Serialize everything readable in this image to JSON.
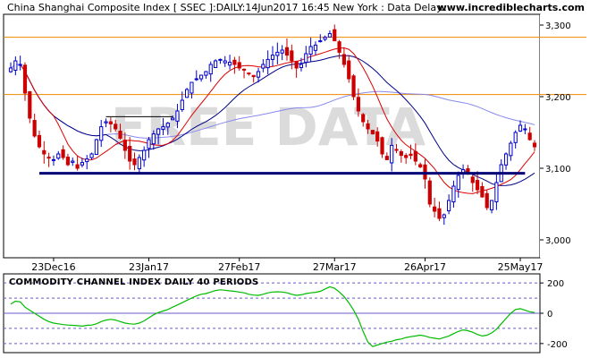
{
  "header": {
    "title": "China Shanghai Composite Index [ SSEC ]:DAILY:14Jun2017 16:45 New York : Data Delay..",
    "site": "www.incrediblecharts.com"
  },
  "watermark": "FREE DATA",
  "colors": {
    "up_candle": "#0000cc",
    "down_candle": "#cc0000",
    "ma_short": "#dd0000",
    "ma_long": "#000088",
    "ma_slow": "#8888ee",
    "resistance_line": "#ee8800",
    "support_line": "#000077",
    "cci_line": "#00bb00",
    "cci_dash": "#6a5acd"
  },
  "chart_data": [
    {
      "type": "candlestick",
      "title": "China Shanghai Composite Index [ SSEC ]:DAILY",
      "xlabel": "",
      "ylabel": "",
      "ylim": [
        2975,
        3315
      ],
      "y_ticks": [
        {
          "value": 3000,
          "label": "3,000"
        },
        {
          "value": 3100,
          "label": "3,100"
        },
        {
          "value": 3200,
          "label": "3,200"
        },
        {
          "value": 3300,
          "label": "3,300"
        }
      ],
      "x_ticks": [
        {
          "index": 9,
          "label": "23Dec16"
        },
        {
          "index": 29,
          "label": "23Jan17"
        },
        {
          "index": 48,
          "label": "27Feb17"
        },
        {
          "index": 68,
          "label": "27Mar17"
        },
        {
          "index": 87,
          "label": "26Apr17"
        },
        {
          "index": 107,
          "label": "25May17"
        }
      ],
      "horizontal_lines": [
        {
          "name": "resistance-upper",
          "value": 3283
        },
        {
          "name": "resistance-lower",
          "value": 3203
        }
      ],
      "support_line": {
        "from_index": 6,
        "to_index": 108,
        "value": 3093
      },
      "box_line": {
        "from_index": 20,
        "to_index": 34,
        "value": 3172
      },
      "closes": [
        3240,
        3250,
        3245,
        3205,
        3170,
        3145,
        3130,
        3120,
        3115,
        3112,
        3120,
        3115,
        3105,
        3110,
        3100,
        3108,
        3113,
        3120,
        3140,
        3158,
        3165,
        3162,
        3155,
        3142,
        3125,
        3110,
        3105,
        3115,
        3125,
        3140,
        3148,
        3155,
        3158,
        3163,
        3170,
        3180,
        3195,
        3210,
        3220,
        3225,
        3230,
        3235,
        3245,
        3250,
        3252,
        3250,
        3248,
        3245,
        3240,
        3238,
        3232,
        3228,
        3235,
        3245,
        3252,
        3258,
        3262,
        3265,
        3258,
        3250,
        3240,
        3245,
        3260,
        3270,
        3272,
        3278,
        3283,
        3288,
        3278,
        3262,
        3245,
        3225,
        3200,
        3180,
        3165,
        3155,
        3148,
        3138,
        3120,
        3112,
        3132,
        3125,
        3118,
        3115,
        3118,
        3110,
        3102,
        3085,
        3050,
        3040,
        3030,
        3035,
        3055,
        3075,
        3090,
        3098,
        3092,
        3080,
        3070,
        3060,
        3045,
        3055,
        3080,
        3105,
        3120,
        3135,
        3150,
        3160,
        3155,
        3140,
        3130
      ],
      "highs_lows_derived": "wicks estimated from closes",
      "ma_short_period": 10,
      "ma_long_period": 21,
      "ma_slow_period": 100
    },
    {
      "type": "line",
      "title": "COMMODITY CHANNEL INDEX DAILY 40 PERIODS",
      "ylim": [
        -260,
        260
      ],
      "y_ticks": [
        {
          "value": 200,
          "label": "200"
        },
        {
          "value": 0,
          "label": "0"
        },
        {
          "value": -200,
          "label": "-200"
        }
      ],
      "dashed_levels": [
        200,
        100,
        -100,
        -200
      ],
      "values": [
        60,
        80,
        75,
        40,
        20,
        0,
        -20,
        -40,
        -55,
        -65,
        -70,
        -75,
        -78,
        -80,
        -82,
        -85,
        -80,
        -78,
        -70,
        -55,
        -45,
        -40,
        -45,
        -55,
        -65,
        -70,
        -72,
        -65,
        -50,
        -30,
        -10,
        5,
        15,
        25,
        40,
        55,
        70,
        85,
        100,
        115,
        125,
        130,
        140,
        150,
        155,
        152,
        148,
        145,
        140,
        135,
        125,
        120,
        118,
        125,
        135,
        140,
        142,
        140,
        135,
        125,
        118,
        122,
        130,
        135,
        138,
        145,
        160,
        175,
        165,
        140,
        110,
        70,
        20,
        -40,
        -120,
        -190,
        -220,
        -210,
        -200,
        -190,
        -185,
        -175,
        -170,
        -160,
        -155,
        -150,
        -145,
        -150,
        -160,
        -165,
        -170,
        -160,
        -150,
        -135,
        -120,
        -110,
        -115,
        -125,
        -140,
        -150,
        -145,
        -130,
        -105,
        -70,
        -35,
        0,
        25,
        30,
        20,
        10,
        5
      ]
    }
  ]
}
